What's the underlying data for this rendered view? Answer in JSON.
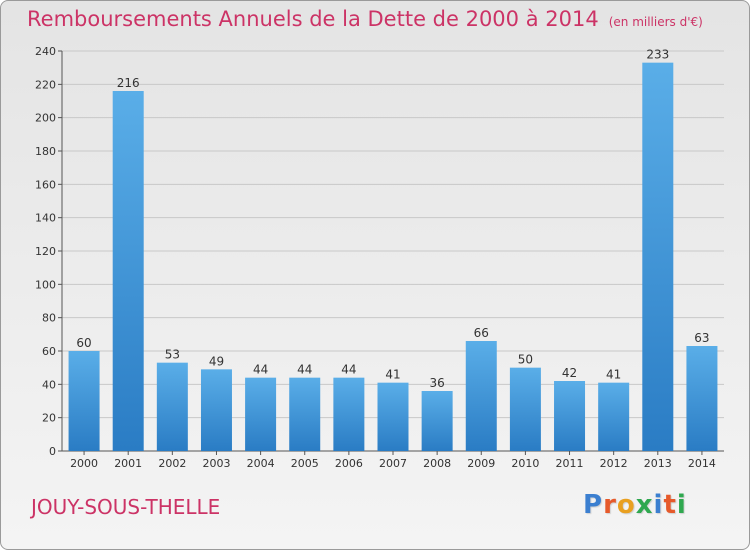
{
  "chart_data": {
    "type": "bar",
    "title": "Remboursements Annuels de la Dette de 2000 à 2014",
    "unit_label": "(en milliers d'€)",
    "categories": [
      "2000",
      "2001",
      "2002",
      "2003",
      "2004",
      "2005",
      "2006",
      "2007",
      "2008",
      "2009",
      "2010",
      "2011",
      "2012",
      "2013",
      "2014"
    ],
    "values": [
      60,
      216,
      53,
      49,
      44,
      44,
      44,
      41,
      36,
      66,
      50,
      42,
      41,
      233,
      63
    ],
    "ylim": [
      0,
      240
    ],
    "yticks": [
      0,
      20,
      40,
      60,
      80,
      100,
      120,
      140,
      160,
      180,
      200,
      220,
      240
    ],
    "grid": true,
    "bar_color": "#3d8fd6"
  },
  "commune": "JOUY-SOUS-THELLE",
  "logo": {
    "letters": [
      "P",
      "r",
      "o",
      "x",
      "i",
      "t",
      "i"
    ],
    "colors": [
      "#3b7fd0",
      "#e65a2b",
      "#e9a020",
      "#2fa84f",
      "#3b7fd0",
      "#e65a2b",
      "#2fa84f"
    ]
  },
  "colors": {
    "accent": "#cc3366"
  }
}
